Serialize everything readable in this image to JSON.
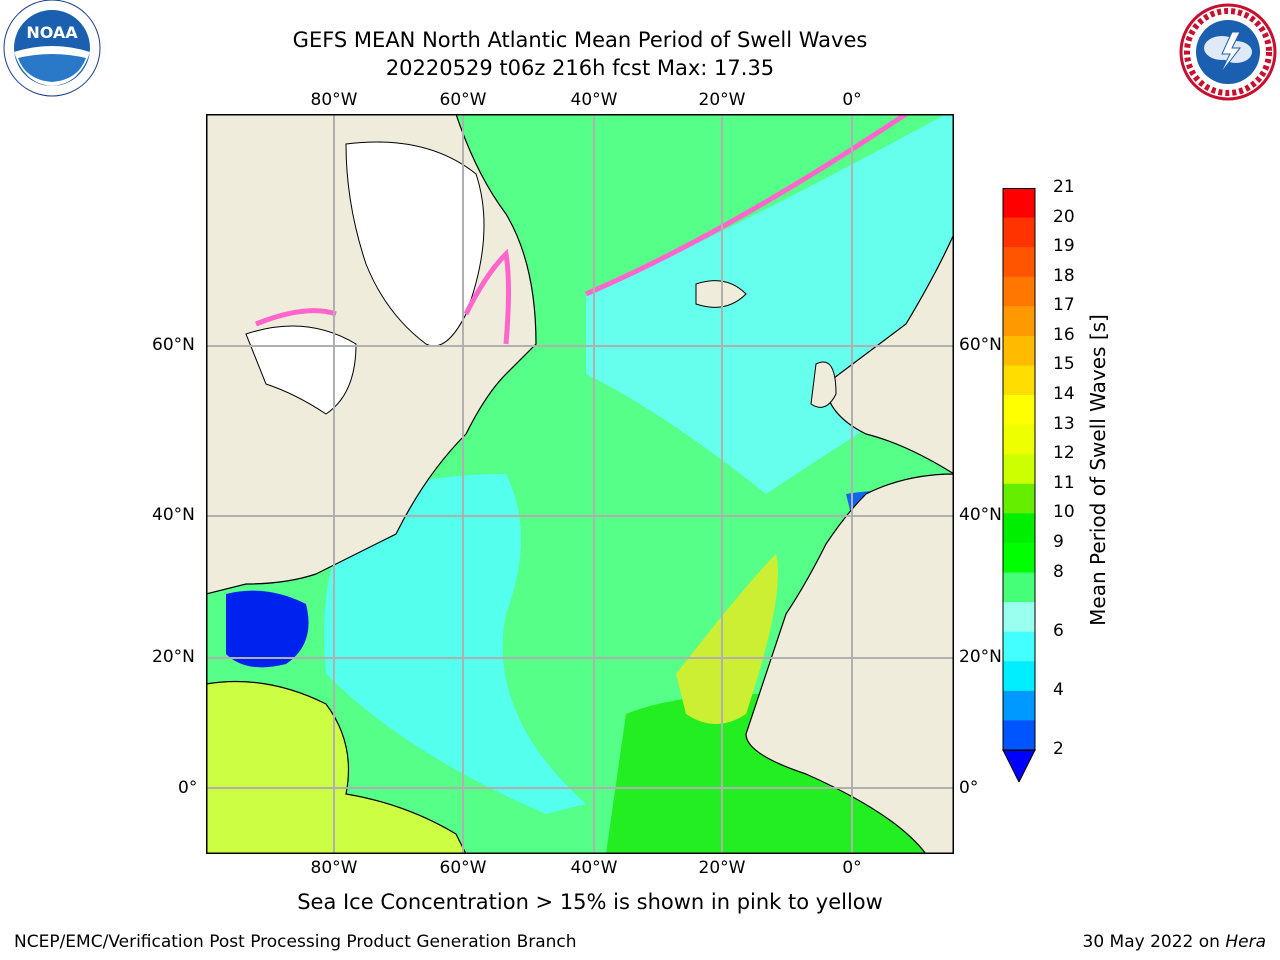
{
  "header": {
    "title_line1": "GEFS MEAN North Atlantic Mean Period of Swell Waves",
    "title_line2": "20220529 t06z 216h fcst   Max: 17.35"
  },
  "logos": {
    "left": {
      "icon": "noaa-logo",
      "text": "NOAA"
    },
    "right": {
      "icon": "nws-logo",
      "ring_text": "NATIONAL WEATHER SERVICE"
    }
  },
  "map": {
    "lon_labels": [
      "80°W",
      "60°W",
      "40°W",
      "20°W",
      "0°"
    ],
    "lat_labels": [
      "60°N",
      "40°N",
      "20°N",
      "0°"
    ],
    "land_color": "#efecdc",
    "ice_color": "#ffffff",
    "grid_color": "#b0b0b0"
  },
  "colorbar": {
    "label": "Mean Period of Swell Waves [s]",
    "ticks": [
      "21",
      "20",
      "19",
      "18",
      "17",
      "16",
      "15",
      "14",
      "13",
      "12",
      "11",
      "10",
      "9",
      "8",
      "6",
      "4",
      "2"
    ],
    "colors": [
      "#ff0000",
      "#ff3300",
      "#ff5500",
      "#ff7700",
      "#ff9900",
      "#ffbb00",
      "#ffdd00",
      "#ffff00",
      "#eeff00",
      "#ccff00",
      "#66ee00",
      "#00ee00",
      "#00ff00",
      "#44ff77",
      "#99ffee",
      "#44ffff",
      "#00eeff",
      "#0099ff",
      "#0055ff",
      "#0000ff"
    ]
  },
  "caption": "Sea Ice Concentration > 15% is shown in pink to yellow",
  "footer": {
    "left": "NCEP/EMC/Verification Post Processing Product Generation Branch",
    "right_prefix": "30 May 2022 on ",
    "right_machine": "Hera"
  }
}
